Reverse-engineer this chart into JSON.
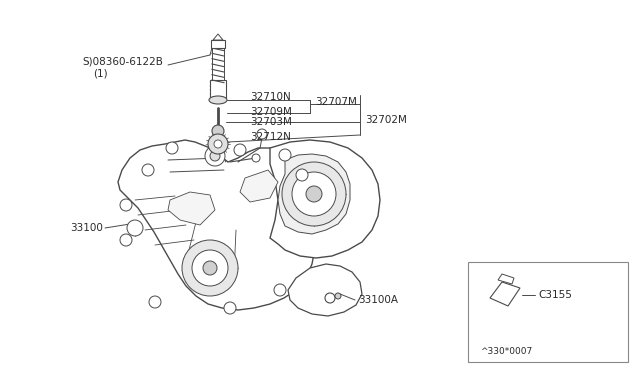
{
  "bg_color": "#ffffff",
  "line_color": "#4a4a4a",
  "figsize": [
    6.4,
    3.72
  ],
  "dpi": 100,
  "labels": {
    "screw": "S)08360-6122B",
    "screw_sub": "(1)",
    "p32707": "32707M",
    "p32710": "32710N",
    "p32709": "32709M",
    "p32703": "32703M",
    "p32702": "32702M",
    "p32712": "32712N",
    "p33100": "33100",
    "p33100a": "33100A",
    "c3155": "C3155",
    "drawing_num": "^330*0007"
  }
}
